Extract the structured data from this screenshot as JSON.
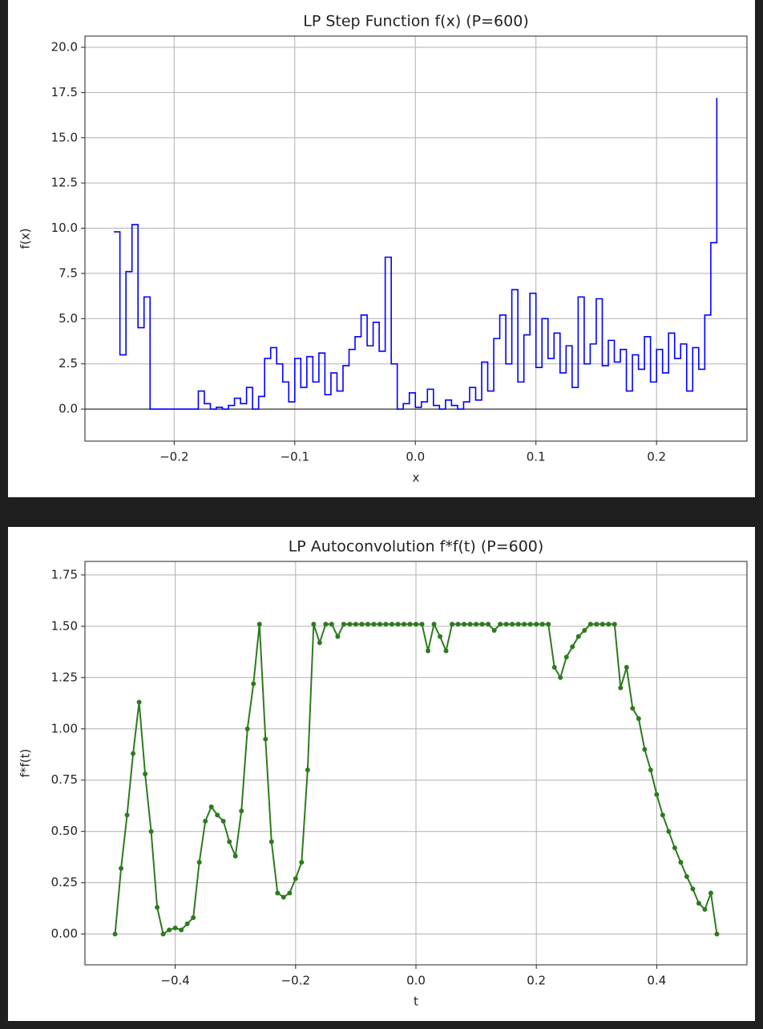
{
  "chart_data": [
    {
      "type": "step",
      "title": "LP Step Function f(x) (P=600)",
      "xlabel": "x",
      "ylabel": "f(x)",
      "x": [
        -0.25,
        -0.245,
        -0.24,
        -0.235,
        -0.23,
        -0.225,
        -0.22,
        -0.215,
        -0.21,
        -0.205,
        -0.2,
        -0.195,
        -0.19,
        -0.185,
        -0.18,
        -0.175,
        -0.17,
        -0.165,
        -0.16,
        -0.155,
        -0.15,
        -0.145,
        -0.14,
        -0.135,
        -0.13,
        -0.125,
        -0.12,
        -0.115,
        -0.11,
        -0.105,
        -0.1,
        -0.095,
        -0.09,
        -0.085,
        -0.08,
        -0.075,
        -0.07,
        -0.065,
        -0.06,
        -0.055,
        -0.05,
        -0.045,
        -0.04,
        -0.035,
        -0.03,
        -0.025,
        -0.02,
        -0.015,
        -0.01,
        -0.005,
        0,
        0.005,
        0.01,
        0.015,
        0.02,
        0.025,
        0.03,
        0.035,
        0.04,
        0.045,
        0.05,
        0.055,
        0.06,
        0.065,
        0.07,
        0.075,
        0.08,
        0.085,
        0.09,
        0.095,
        0.1,
        0.105,
        0.11,
        0.115,
        0.12,
        0.125,
        0.13,
        0.135,
        0.14,
        0.145,
        0.15,
        0.155,
        0.16,
        0.165,
        0.17,
        0.175,
        0.18,
        0.185,
        0.19,
        0.195,
        0.2,
        0.205,
        0.21,
        0.215,
        0.22,
        0.225,
        0.23,
        0.235,
        0.24,
        0.245,
        0.25
      ],
      "values": [
        9.8,
        3.0,
        7.6,
        10.2,
        4.5,
        6.2,
        0,
        0,
        0,
        0,
        0,
        0,
        0,
        0,
        1.0,
        0.3,
        0,
        0.1,
        0,
        0.2,
        0.6,
        0.3,
        1.2,
        0,
        0.7,
        2.8,
        3.4,
        2.5,
        1.5,
        0.4,
        2.8,
        1.2,
        2.9,
        1.5,
        3.1,
        0.8,
        2.0,
        1.0,
        2.4,
        3.3,
        4.0,
        5.2,
        3.5,
        4.8,
        3.2,
        8.4,
        2.5,
        0,
        0.3,
        0.9,
        0.1,
        0.4,
        1.1,
        0.2,
        0,
        0.5,
        0.2,
        0,
        0.4,
        1.2,
        0.5,
        2.6,
        1.0,
        3.9,
        5.2,
        2.5,
        6.6,
        1.5,
        4.1,
        6.4,
        2.3,
        5.0,
        2.8,
        4.2,
        2.0,
        3.5,
        1.2,
        6.2,
        2.5,
        3.6,
        6.1,
        2.4,
        3.8,
        2.6,
        3.3,
        1.0,
        3.0,
        2.2,
        4.0,
        1.5,
        3.3,
        2.0,
        4.2,
        2.8,
        3.6,
        1.0,
        3.4,
        2.2,
        5.2,
        9.2,
        17.2
      ],
      "color": "#0000ff",
      "hline": 0,
      "xlim": [
        -0.274,
        0.275
      ],
      "ylim": [
        -1.77,
        20.62
      ],
      "xticks": [
        {
          "value": -0.2,
          "label": "−0.2"
        },
        {
          "value": -0.1,
          "label": "−0.1"
        },
        {
          "value": 0,
          "label": "0.0"
        },
        0.1,
        0.2
      ],
      "yticks": [
        {
          "value": 0,
          "label": "0.0"
        },
        2.5,
        {
          "value": 5,
          "label": "5.0"
        },
        7.5,
        {
          "value": 10,
          "label": "10.0"
        },
        12.5,
        {
          "value": 15,
          "label": "15.0"
        },
        17.5,
        {
          "value": 20,
          "label": "20.0"
        }
      ],
      "grid": true
    },
    {
      "type": "line",
      "title": "LP Autoconvolution f*f(t) (P=600)",
      "xlabel": "t",
      "ylabel": "f*f(t)",
      "x": [
        -0.5,
        -0.49,
        -0.48,
        -0.47,
        -0.46,
        -0.45,
        -0.44,
        -0.43,
        -0.42,
        -0.41,
        -0.4,
        -0.39,
        -0.38,
        -0.37,
        -0.36,
        -0.35,
        -0.34,
        -0.33,
        -0.32,
        -0.31,
        -0.3,
        -0.29,
        -0.28,
        -0.27,
        -0.26,
        -0.25,
        -0.24,
        -0.23,
        -0.22,
        -0.21,
        -0.2,
        -0.19,
        -0.18,
        -0.17,
        -0.16,
        -0.15,
        -0.14,
        -0.13,
        -0.12,
        -0.11,
        -0.1,
        -0.09,
        -0.08,
        -0.07,
        -0.06,
        -0.05,
        -0.04,
        -0.03,
        -0.02,
        -0.01,
        0,
        0.01,
        0.02,
        0.03,
        0.04,
        0.05,
        0.06,
        0.07,
        0.08,
        0.09,
        0.1,
        0.11,
        0.12,
        0.13,
        0.14,
        0.15,
        0.16,
        0.17,
        0.18,
        0.19,
        0.2,
        0.21,
        0.22,
        0.23,
        0.24,
        0.25,
        0.26,
        0.27,
        0.28,
        0.29,
        0.3,
        0.31,
        0.32,
        0.33,
        0.34,
        0.35,
        0.36,
        0.37,
        0.38,
        0.39,
        0.4,
        0.41,
        0.42,
        0.43,
        0.44,
        0.45,
        0.46,
        0.47,
        0.48,
        0.49,
        0.5
      ],
      "values": [
        0,
        0.32,
        0.58,
        0.88,
        1.13,
        0.78,
        0.5,
        0.13,
        0,
        0.02,
        0.03,
        0.02,
        0.05,
        0.08,
        0.35,
        0.55,
        0.62,
        0.58,
        0.55,
        0.45,
        0.38,
        0.6,
        1.0,
        1.22,
        1.51,
        0.95,
        0.45,
        0.2,
        0.18,
        0.2,
        0.27,
        0.35,
        0.8,
        1.51,
        1.42,
        1.51,
        1.51,
        1.45,
        1.51,
        1.51,
        1.51,
        1.51,
        1.51,
        1.51,
        1.51,
        1.51,
        1.51,
        1.51,
        1.51,
        1.51,
        1.51,
        1.51,
        1.38,
        1.51,
        1.45,
        1.38,
        1.51,
        1.51,
        1.51,
        1.51,
        1.51,
        1.51,
        1.51,
        1.48,
        1.51,
        1.51,
        1.51,
        1.51,
        1.51,
        1.51,
        1.51,
        1.51,
        1.51,
        1.3,
        1.25,
        1.35,
        1.4,
        1.45,
        1.48,
        1.51,
        1.51,
        1.51,
        1.51,
        1.51,
        1.2,
        1.3,
        1.1,
        1.05,
        0.9,
        0.8,
        0.68,
        0.58,
        0.5,
        0.42,
        0.35,
        0.28,
        0.22,
        0.15,
        0.12,
        0.2,
        0
      ],
      "color": "#2e7a1f",
      "marker": true,
      "xlim": [
        -0.55,
        0.55
      ],
      "ylim": [
        -0.15,
        1.816
      ],
      "xticks": [
        {
          "value": -0.4,
          "label": "−0.4"
        },
        {
          "value": -0.2,
          "label": "−0.2"
        },
        {
          "value": 0,
          "label": "0.0"
        },
        0.2,
        0.4
      ],
      "yticks": [
        {
          "value": 0,
          "label": "0.00"
        },
        0.25,
        {
          "value": 0.5,
          "label": "0.50"
        },
        0.75,
        {
          "value": 1,
          "label": "1.00"
        },
        1.25,
        {
          "value": 1.5,
          "label": "1.50"
        },
        1.75
      ],
      "grid": true
    }
  ]
}
